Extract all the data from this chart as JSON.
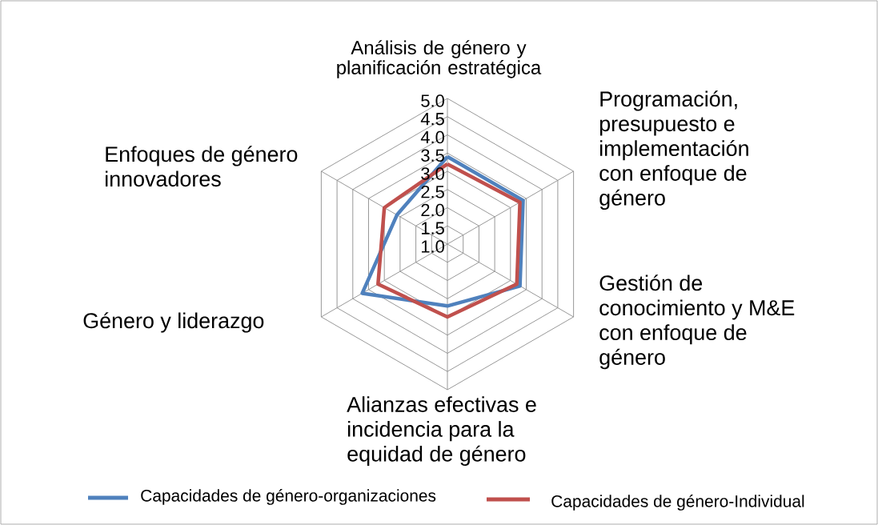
{
  "chart_data": {
    "type": "radar",
    "categories": [
      "Análisis de género y planificación estratégica",
      "Programación, presupuesto e implementación con enfoque de género",
      "Gestión de conocimiento y M&E con enfoque de género",
      "Alianzas efectivas e incidencia para la equidad de género",
      "Género y liderazgo",
      "Enfoques de género innovadores"
    ],
    "series": [
      {
        "name": "Capacidades de género-organizaciones",
        "color": "#4f81bd",
        "values": [
          3.4,
          3.4,
          3.3,
          2.7,
          3.7,
          2.6
        ]
      },
      {
        "name": "Capacidades de género-Individual",
        "color": "#c0504d",
        "values": [
          3.2,
          3.3,
          3.2,
          3.0,
          3.2,
          3.0
        ]
      }
    ],
    "ylim": [
      1.0,
      5.0
    ],
    "yticks": [
      {
        "value": 1.0,
        "label": "1.0"
      },
      {
        "value": 1.5,
        "label": "1.5"
      },
      {
        "value": 2.0,
        "label": "2.0"
      },
      {
        "value": 2.5,
        "label": "2.5"
      },
      {
        "value": 3.0,
        "label": "3.0"
      },
      {
        "value": 3.5,
        "label": "3.5"
      },
      {
        "value": 4.0,
        "label": "4.0"
      },
      {
        "value": 4.5,
        "label": "4.5"
      },
      {
        "value": 5.0,
        "label": "5.0"
      }
    ],
    "grid": true,
    "legend": "bottom"
  }
}
